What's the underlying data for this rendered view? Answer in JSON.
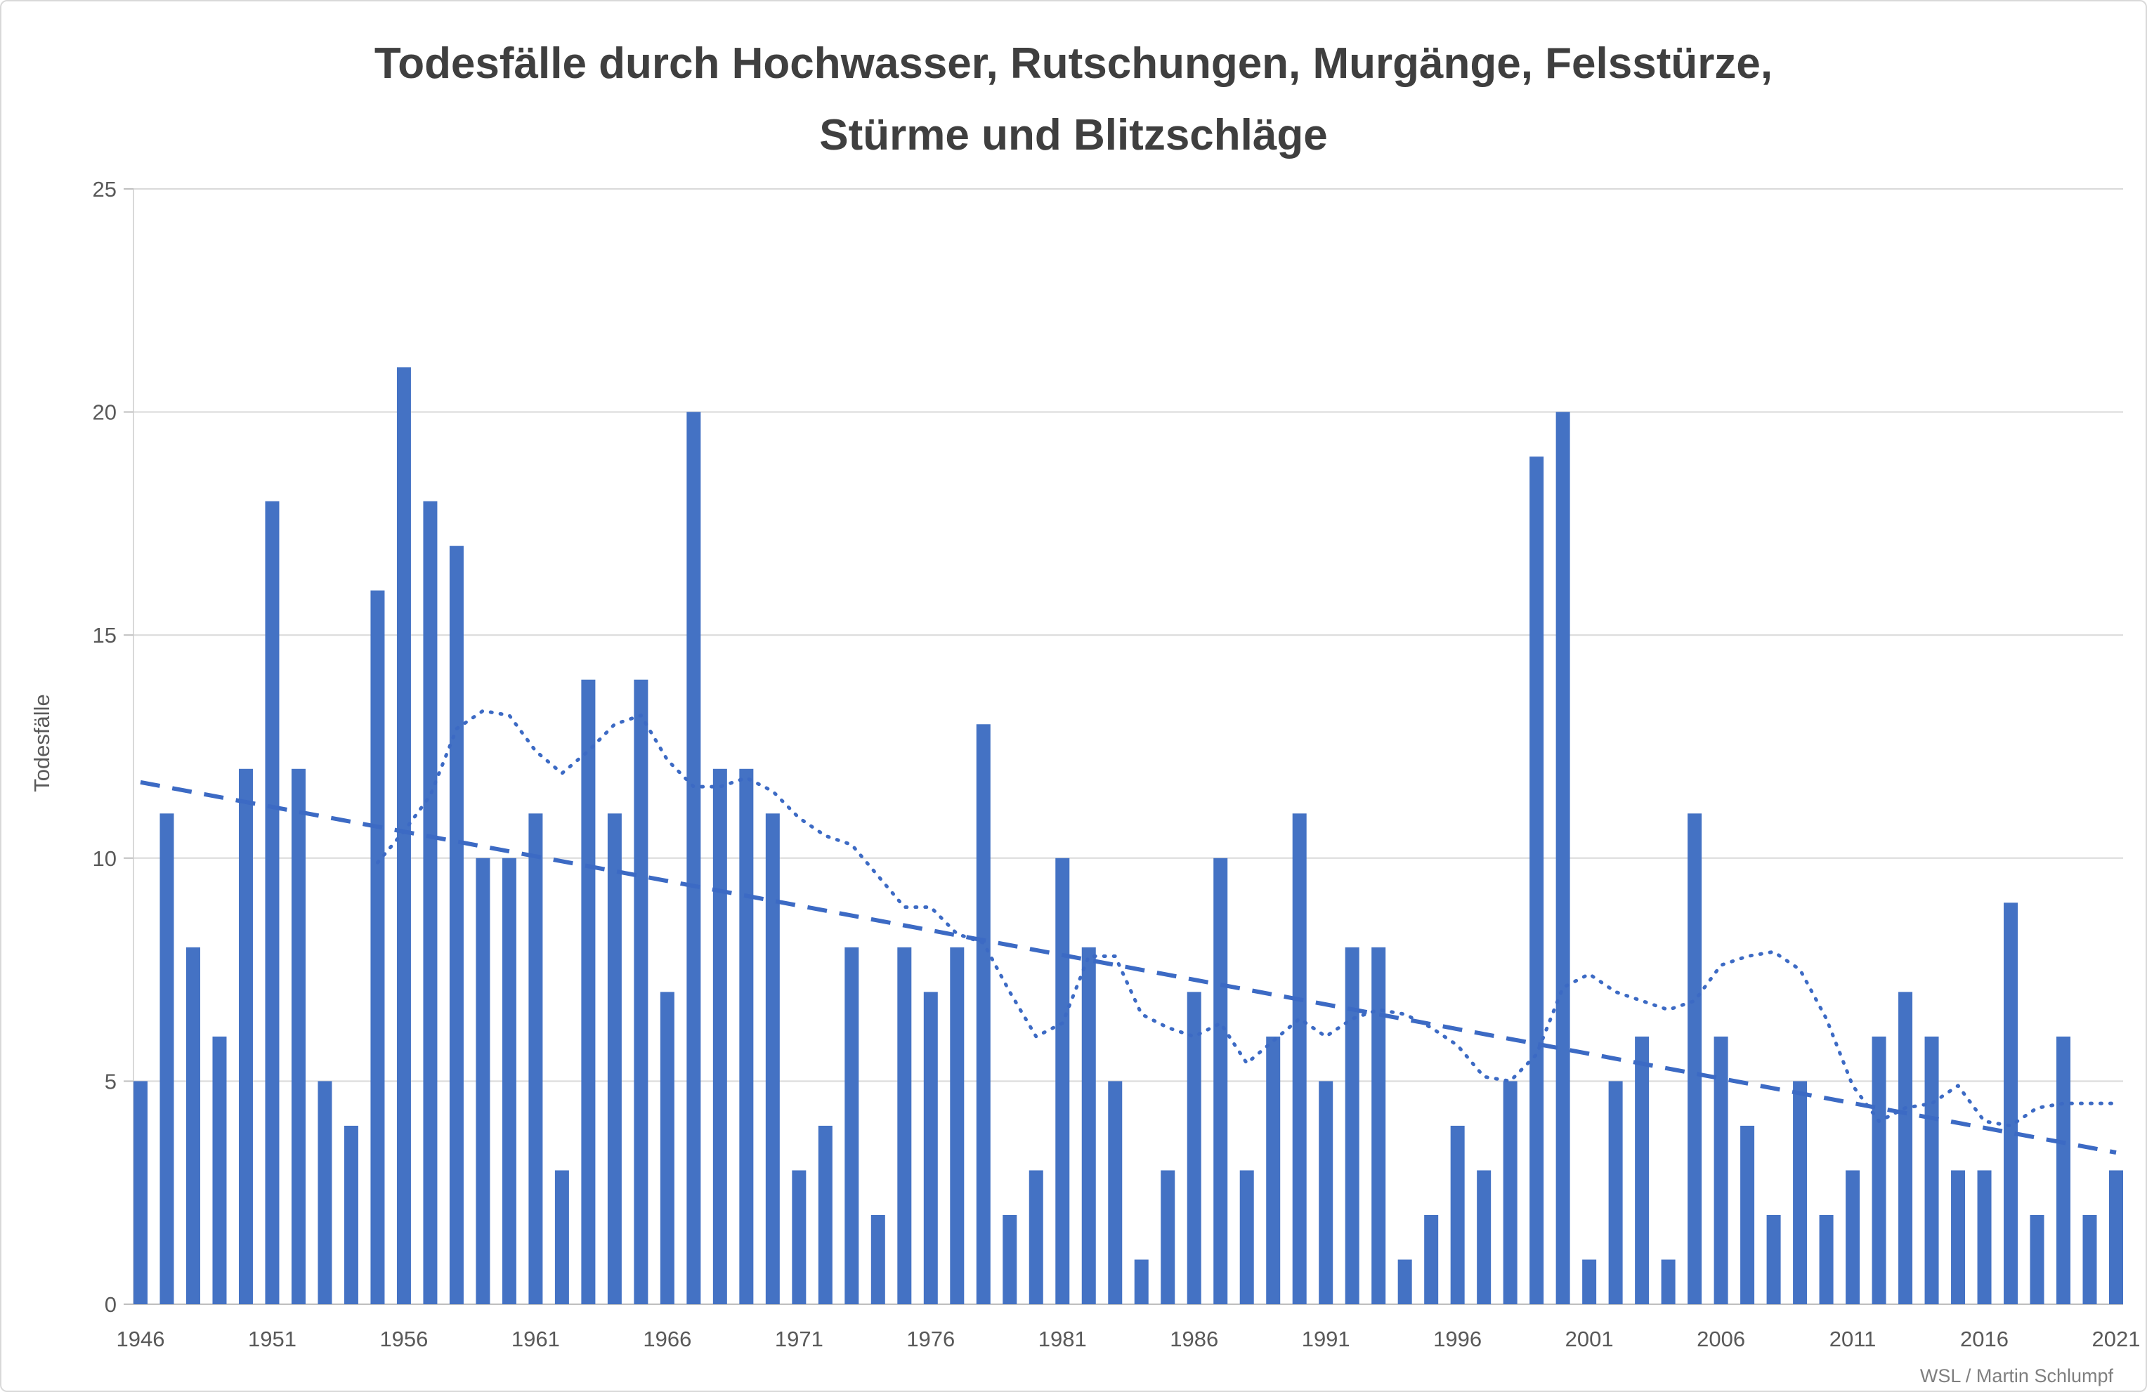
{
  "title": {
    "line1": "Todesfälle durch Hochwasser, Rutschungen, Murgänge, Felsstürze,",
    "line2": "Stürme und Blitzschläge"
  },
  "attribution": "WSL / Martin Schlumpf",
  "colors": {
    "bar": "#4472c4",
    "trend_line": "#3c6ac4",
    "smoothed_line": "#3c6ac4",
    "grid": "#d9d9d9",
    "axis_line": "#bfbfbf",
    "tick_text": "#595959",
    "title_text": "#3f3f3f",
    "attribution_text": "#7f7f7f"
  },
  "chart_data": {
    "type": "bar",
    "title": "Todesfälle durch Hochwasser, Rutschungen, Murgänge, Felsstürze, Stürme und Blitzschläge",
    "xlabel": "",
    "ylabel": "Todesfälle",
    "ylim": [
      0,
      25
    ],
    "grid": true,
    "y_ticks": [
      0,
      5,
      10,
      15,
      20,
      25
    ],
    "x_ticks": [
      1946,
      1951,
      1956,
      1961,
      1966,
      1971,
      1976,
      1981,
      1986,
      1991,
      1996,
      2001,
      2006,
      2011,
      2016,
      2021
    ],
    "years": [
      1946,
      1947,
      1948,
      1949,
      1950,
      1951,
      1952,
      1953,
      1954,
      1955,
      1956,
      1957,
      1958,
      1959,
      1960,
      1961,
      1962,
      1963,
      1964,
      1965,
      1966,
      1967,
      1968,
      1969,
      1970,
      1971,
      1972,
      1973,
      1974,
      1975,
      1976,
      1977,
      1978,
      1979,
      1980,
      1981,
      1982,
      1983,
      1984,
      1985,
      1986,
      1987,
      1988,
      1989,
      1990,
      1991,
      1992,
      1993,
      1994,
      1995,
      1996,
      1997,
      1998,
      1999,
      2000,
      2001,
      2002,
      2003,
      2004,
      2005,
      2006,
      2007,
      2008,
      2009,
      2010,
      2011,
      2012,
      2013,
      2014,
      2015,
      2016,
      2017,
      2018,
      2019,
      2020,
      2021
    ],
    "values": [
      5,
      11,
      8,
      6,
      12,
      18,
      12,
      5,
      4,
      16,
      21,
      18,
      17,
      10,
      10,
      11,
      3,
      14,
      11,
      14,
      7,
      20,
      12,
      12,
      11,
      3,
      4,
      8,
      2,
      8,
      7,
      8,
      13,
      2,
      3,
      10,
      8,
      5,
      1,
      3,
      7,
      10,
      3,
      6,
      11,
      5,
      8,
      8,
      1,
      2,
      4,
      3,
      5,
      19,
      20,
      1,
      5,
      6,
      1,
      11,
      6,
      4,
      2,
      5,
      2,
      3,
      6,
      7,
      6,
      3,
      3,
      9,
      2,
      6,
      2,
      3
    ],
    "trend_line": {
      "style": "dashed",
      "x": [
        1946,
        2021
      ],
      "y": [
        11.7,
        3.4
      ]
    },
    "smoothed_line": {
      "style": "dotted",
      "points": [
        [
          1955,
          9.9
        ],
        [
          1956,
          10.6
        ],
        [
          1957,
          11.4
        ],
        [
          1958,
          12.9
        ],
        [
          1959,
          13.3
        ],
        [
          1960,
          13.2
        ],
        [
          1961,
          12.4
        ],
        [
          1962,
          11.9
        ],
        [
          1963,
          12.4
        ],
        [
          1964,
          13.0
        ],
        [
          1965,
          13.2
        ],
        [
          1966,
          12.2
        ],
        [
          1967,
          11.6
        ],
        [
          1968,
          11.6
        ],
        [
          1969,
          11.8
        ],
        [
          1970,
          11.5
        ],
        [
          1971,
          10.9
        ],
        [
          1972,
          10.5
        ],
        [
          1973,
          10.3
        ],
        [
          1974,
          9.6
        ],
        [
          1975,
          8.9
        ],
        [
          1976,
          8.9
        ],
        [
          1977,
          8.3
        ],
        [
          1978,
          8.1
        ],
        [
          1979,
          7.0
        ],
        [
          1980,
          6.0
        ],
        [
          1981,
          6.3
        ],
        [
          1982,
          7.8
        ],
        [
          1983,
          7.8
        ],
        [
          1984,
          6.5
        ],
        [
          1985,
          6.2
        ],
        [
          1986,
          6.0
        ],
        [
          1987,
          6.3
        ],
        [
          1988,
          5.4
        ],
        [
          1989,
          5.9
        ],
        [
          1990,
          6.4
        ],
        [
          1991,
          6.0
        ],
        [
          1992,
          6.4
        ],
        [
          1993,
          6.6
        ],
        [
          1994,
          6.5
        ],
        [
          1995,
          6.2
        ],
        [
          1996,
          5.8
        ],
        [
          1997,
          5.1
        ],
        [
          1998,
          5.0
        ],
        [
          1999,
          5.6
        ],
        [
          2000,
          7.1
        ],
        [
          2001,
          7.4
        ],
        [
          2002,
          7.0
        ],
        [
          2003,
          6.8
        ],
        [
          2004,
          6.6
        ],
        [
          2005,
          6.8
        ],
        [
          2006,
          7.6
        ],
        [
          2007,
          7.8
        ],
        [
          2008,
          7.9
        ],
        [
          2009,
          7.5
        ],
        [
          2010,
          6.4
        ],
        [
          2011,
          4.9
        ],
        [
          2012,
          4.1
        ],
        [
          2013,
          4.4
        ],
        [
          2014,
          4.5
        ],
        [
          2015,
          4.9
        ],
        [
          2016,
          4.1
        ],
        [
          2017,
          4.0
        ],
        [
          2018,
          4.4
        ],
        [
          2019,
          4.5
        ],
        [
          2020,
          4.5
        ],
        [
          2021,
          4.5
        ]
      ]
    },
    "attribution": "WSL / Martin Schlumpf"
  }
}
